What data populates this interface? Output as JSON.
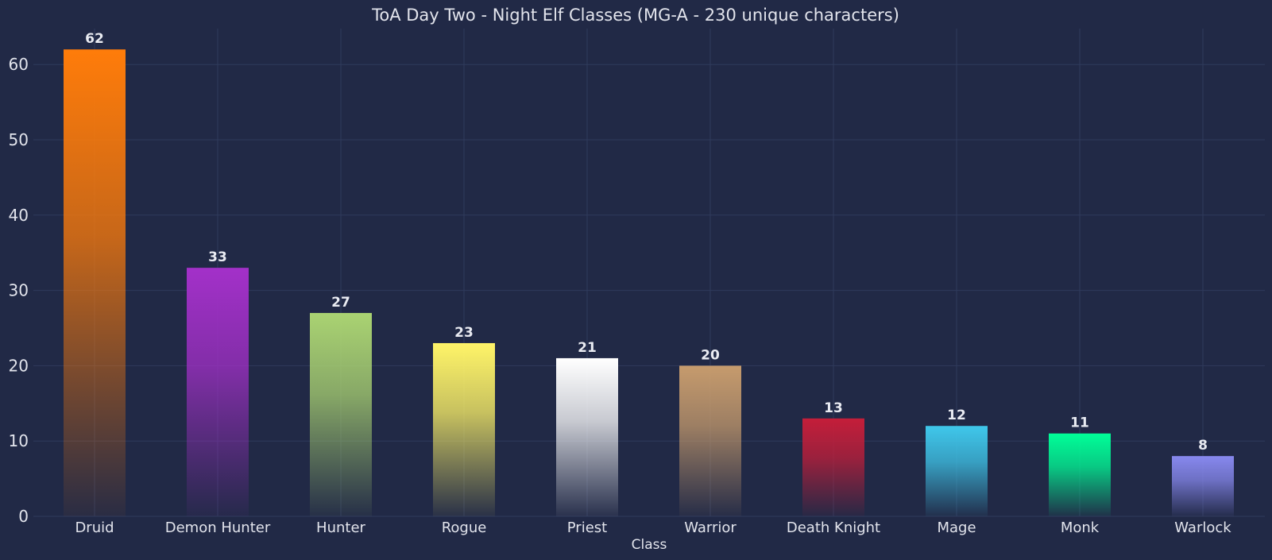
{
  "chart_data": {
    "type": "bar",
    "title": "ToA Day Two - Night Elf Classes (MG-A - 230 unique characters)",
    "xlabel": "Class",
    "ylabel": "",
    "categories": [
      "Druid",
      "Demon Hunter",
      "Hunter",
      "Rogue",
      "Priest",
      "Warrior",
      "Death Knight",
      "Mage",
      "Monk",
      "Warlock"
    ],
    "values": [
      62,
      33,
      27,
      23,
      21,
      20,
      13,
      12,
      11,
      8
    ],
    "colors": [
      "#ff7c0a",
      "#a330c9",
      "#aad372",
      "#fff468",
      "#ffffff",
      "#c69b6d",
      "#c41e3a",
      "#3fc7eb",
      "#00ff98",
      "#8788ee"
    ],
    "fade_to_color": "#212946",
    "ylim": [
      0,
      65
    ],
    "yticks": [
      0,
      10,
      20,
      30,
      40,
      50,
      60
    ],
    "grid": true,
    "background": "#212946"
  }
}
